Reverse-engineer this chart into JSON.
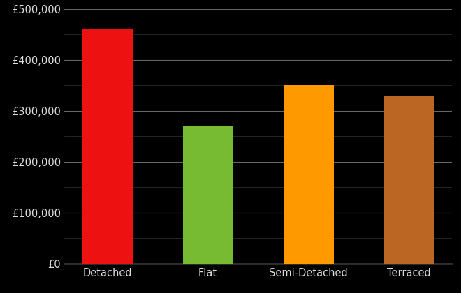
{
  "categories": [
    "Detached",
    "Flat",
    "Semi-Detached",
    "Terraced"
  ],
  "values": [
    460000,
    270000,
    350000,
    330000
  ],
  "bar_colors": [
    "#ee1111",
    "#77bb33",
    "#ff9900",
    "#bb6622"
  ],
  "background_color": "#000000",
  "text_color": "#dddddd",
  "grid_color_major": "#666666",
  "grid_color_minor": "#333333",
  "ylim": [
    0,
    500000
  ],
  "yticks_major": [
    0,
    100000,
    200000,
    300000,
    400000,
    500000
  ],
  "bar_width": 0.5,
  "tick_labelsize": 10.5,
  "xtick_labelsize": 10.5
}
